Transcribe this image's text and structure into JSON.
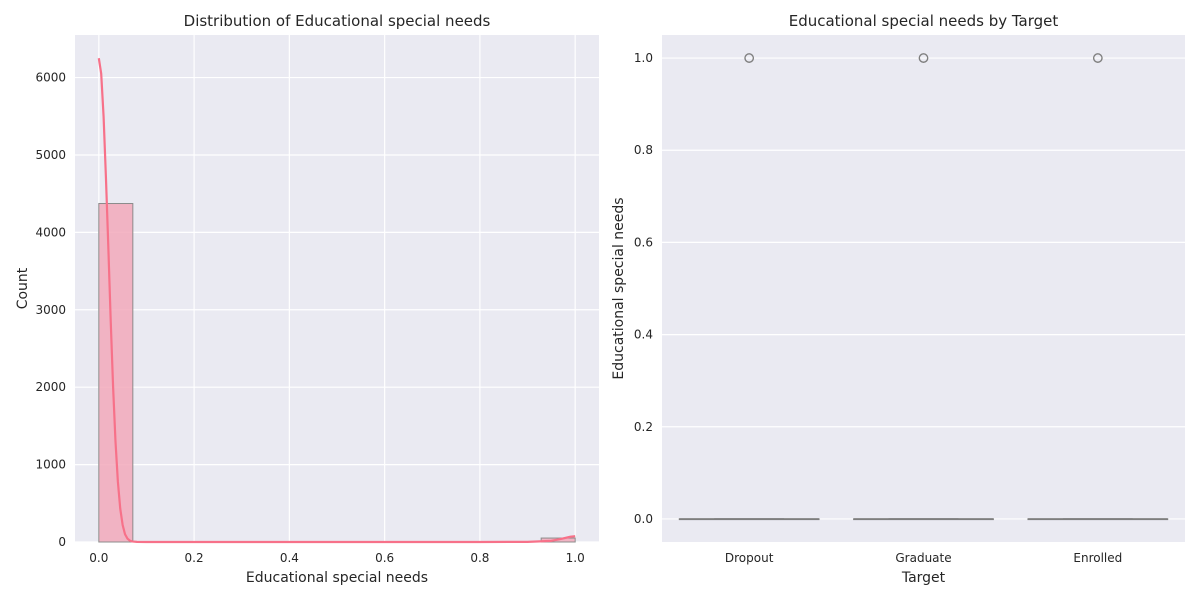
{
  "chart_data": [
    {
      "type": "bar",
      "title": "Distribution of Educational special needs",
      "xlabel": "Educational special needs",
      "ylabel": "Count",
      "xlim": [
        -0.05,
        1.05
      ],
      "ylim": [
        0,
        6550
      ],
      "xticks": [
        0.0,
        0.2,
        0.4,
        0.6,
        0.8,
        1.0
      ],
      "xtick_labels": [
        "0.0",
        "0.2",
        "0.4",
        "0.6",
        "0.8",
        "1.0"
      ],
      "yticks": [
        0,
        1000,
        2000,
        3000,
        4000,
        5000,
        6000
      ],
      "ytick_labels": [
        "0",
        "1000",
        "2000",
        "3000",
        "4000",
        "5000",
        "6000"
      ],
      "bin_width": 0.0714,
      "bins": [
        {
          "x0": 0.0,
          "x1": 0.0714,
          "count": 4373
        },
        {
          "x0": 0.9286,
          "x1": 1.0,
          "count": 51
        }
      ],
      "kde": {
        "x": [
          0.0,
          0.005,
          0.01,
          0.015,
          0.02,
          0.025,
          0.03,
          0.035,
          0.04,
          0.045,
          0.05,
          0.055,
          0.06,
          0.065,
          0.07,
          0.08,
          0.1,
          0.2,
          0.4,
          0.6,
          0.8,
          0.9,
          0.95,
          0.97,
          0.99,
          1.0
        ],
        "y": [
          6250,
          6050,
          5500,
          4700,
          3800,
          2850,
          2000,
          1300,
          780,
          430,
          220,
          100,
          45,
          18,
          7,
          2,
          0,
          0,
          0,
          0,
          0,
          2,
          15,
          40,
          68,
          75
        ]
      },
      "grid": true
    },
    {
      "type": "box",
      "title": "Educational special needs by Target",
      "xlabel": "Target",
      "ylabel": "Educational special needs",
      "categories": [
        "Dropout",
        "Graduate",
        "Enrolled"
      ],
      "ylim": [
        -0.05,
        1.05
      ],
      "yticks": [
        0.0,
        0.2,
        0.4,
        0.6,
        0.8,
        1.0
      ],
      "ytick_labels": [
        "0.0",
        "0.2",
        "0.4",
        "0.6",
        "0.8",
        "1.0"
      ],
      "boxes": [
        {
          "q1": 0,
          "median": 0,
          "q3": 0,
          "whisker_low": 0,
          "whisker_high": 0,
          "outliers": [
            1.0
          ]
        },
        {
          "q1": 0,
          "median": 0,
          "q3": 0,
          "whisker_low": 0,
          "whisker_high": 0,
          "outliers": [
            1.0
          ]
        },
        {
          "q1": 0,
          "median": 0,
          "q3": 0,
          "whisker_low": 0,
          "whisker_high": 0,
          "outliers": [
            1.0
          ]
        }
      ],
      "grid": true
    }
  ],
  "colors": {
    "panel_bg": "#eaeaf2",
    "grid": "#ffffff",
    "hist_fill": "#f2a9bb",
    "hist_edge": "#8c8c8c",
    "kde_line": "#f77189",
    "box_line": "#7f7f7f",
    "outlier": "#7f7f7f"
  }
}
